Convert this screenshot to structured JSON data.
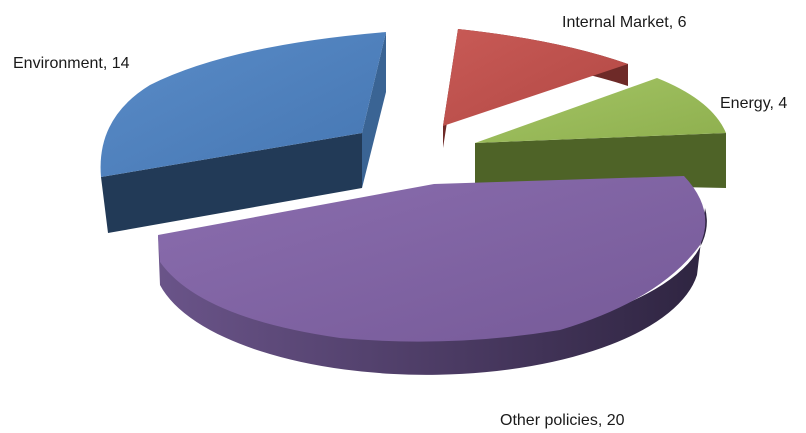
{
  "chart_data": {
    "type": "pie",
    "title": "",
    "slices": [
      {
        "name": "Internal  Market",
        "value": 6,
        "label": "Internal  Market, 6",
        "color": "#C0504D",
        "side_color": "#6E2A28"
      },
      {
        "name": "Energy",
        "value": 4,
        "label": "Energy, 4",
        "color": "#9BBB59",
        "side_color": "#4E6327"
      },
      {
        "name": "Other policies",
        "value": 20,
        "label": "Other policies, 20",
        "color": "#8064A2",
        "side_color": "#3F3152"
      },
      {
        "name": "Environment",
        "value": 14,
        "label": "Environment, 14",
        "color": "#4F81BD",
        "side_color": "#223A57"
      }
    ],
    "exploded": true,
    "view": "3d",
    "legend": "none"
  }
}
